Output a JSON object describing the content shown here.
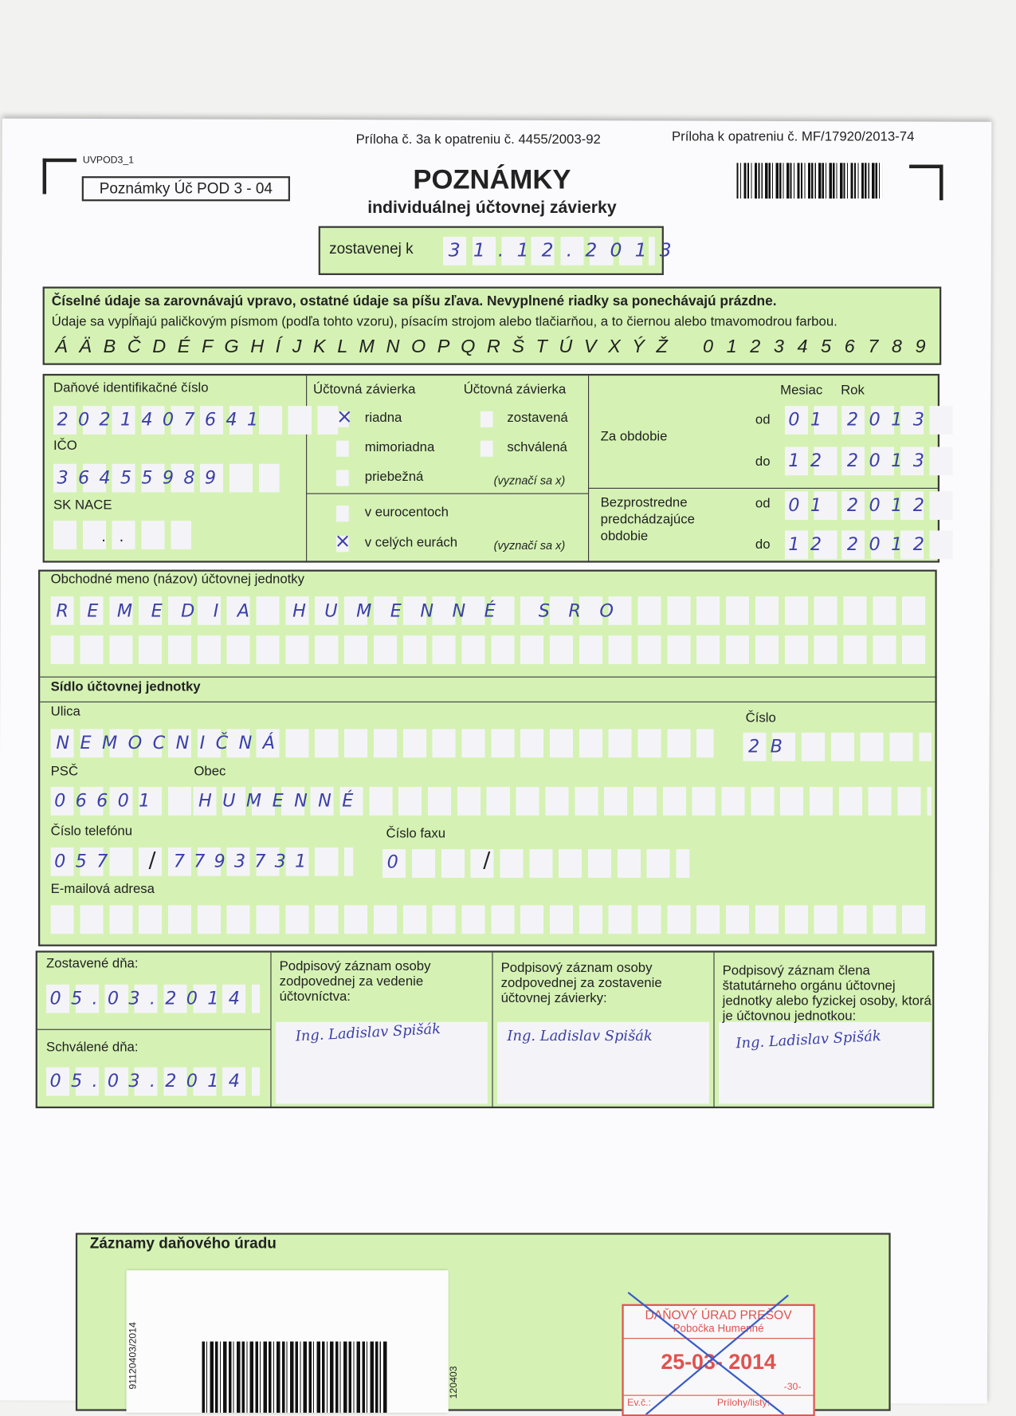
{
  "header": {
    "annex_left": "Príloha č. 3a k opatreniu č. 4455/2003-92",
    "annex_right": "Príloha k opatreniu č. MF/17920/2013-74",
    "form_code": "UVPOD3_1",
    "form_name": "Poznámky Úč POD 3 - 04",
    "title": "POZNÁMKY",
    "subtitle": "individuálnej účtovnej závierky",
    "compiled_label": "zostavenej k",
    "compiled_date": "31.12.2013"
  },
  "instructions": {
    "line1": "Číselné údaje sa zarovnávajú vpravo, ostatné údaje sa píšu zľava. Nevyplnené riadky sa ponechávajú prázdne.",
    "line2": "Údaje sa vypĺňajú paličkovým písmom (podľa tohto vzoru), písacím strojom alebo tlačiarňou, a to čiernou alebo tmavomodrou farbou.",
    "letters": "Á Ä B Č D É F G H Í J K L M N O P Q R Š T Ú V X Ý Ž",
    "digits": "0 1 2 3 4 5 6 7 8 9"
  },
  "ids": {
    "dic_label": "Daňové identifikačné číslo",
    "dic": "2021407641",
    "ico_label": "IČO",
    "ico": "36455989",
    "nace_label": "SK NACE",
    "nace_sep": ".   ."
  },
  "statement": {
    "heading_type": "Účtovná závierka",
    "heading_state": "Účtovná závierka",
    "riadna": "riadna",
    "mimoriadna": "mimoriadna",
    "priebezna": "priebežná",
    "zostavena": "zostavená",
    "schvalena": "schválená",
    "mark_hint": "(vyznačí sa x)",
    "eurocent": "v eurocentoch",
    "whole_euro": "v celých eurách",
    "mark": "×",
    "riadna_checked": true,
    "whole_euro_checked": true
  },
  "period": {
    "month_label": "Mesiac",
    "year_label": "Rok",
    "current_label": "Za obdobie",
    "previous_label_1": "Bezprostredne",
    "previous_label_2": "predchádzajúce",
    "previous_label_3": "obdobie",
    "from_label": "od",
    "to_label": "do",
    "current_from_month": "01",
    "current_from_year": "2013",
    "current_to_month": "12",
    "current_to_year": "2013",
    "prev_from_month": "01",
    "prev_from_year": "2012",
    "prev_to_month": "12",
    "prev_to_year": "2012"
  },
  "entity": {
    "name_label": "Obchodné meno (názov) účtovnej jednotky",
    "name": "REMEDIA HUMENNÉ SRO",
    "seat_label": "Sídlo účtovnej jednotky",
    "street_label": "Ulica",
    "street": "NEMOCNIČNÁ",
    "number_label": "Číslo",
    "number": "2B",
    "zip_label": "PSČ",
    "zip": "06601",
    "city_label": "Obec",
    "city": "HUMENNÉ",
    "phone_label": "Číslo telefónu",
    "phone_prefix": "057",
    "phone": "7793731",
    "fax_label": "Číslo faxu",
    "fax_prefix": "0",
    "slash": "/",
    "email_label": "E-mailová adresa"
  },
  "signatures": {
    "compiled_label": "Zostavené dňa:",
    "compiled_date": "05.03.2014",
    "approved_label": "Schválené dňa:",
    "approved_date": "05.03.2014",
    "col1": "Podpisový záznam osoby zodpovednej za vedenie účtovníctva:",
    "col2": "Podpisový záznam osoby zodpovednej za zostavenie účtovnej závierky:",
    "col3": "Podpisový záznam člena štatutárneho orgánu účtovnej jednotky alebo fyzickej osoby, ktorá je účtovnou jednotkou:",
    "sig1": "Ing. Ladislav Spišák",
    "sig2": "Ing. Ladislav Spišák",
    "sig3": "Ing. Ladislav Spišák"
  },
  "office": {
    "label": "Záznamy daňového úradu",
    "barcode_text": "91120403/2014",
    "barcode_text_right": "120403",
    "stamp_office": "DAŇOVÝ ÚRAD PREŠOV",
    "stamp_branch": "Pobočka Humenné",
    "stamp_date": "25-03- 2014",
    "stamp_code": "-30-",
    "stamp_field1": "Ev.č.:",
    "stamp_field2": "Prílohy/listy:"
  },
  "colors": {
    "form_green": "#d5f2b4",
    "ink_blue": "#3b3fa8",
    "stamp_red": "#e0524f"
  }
}
